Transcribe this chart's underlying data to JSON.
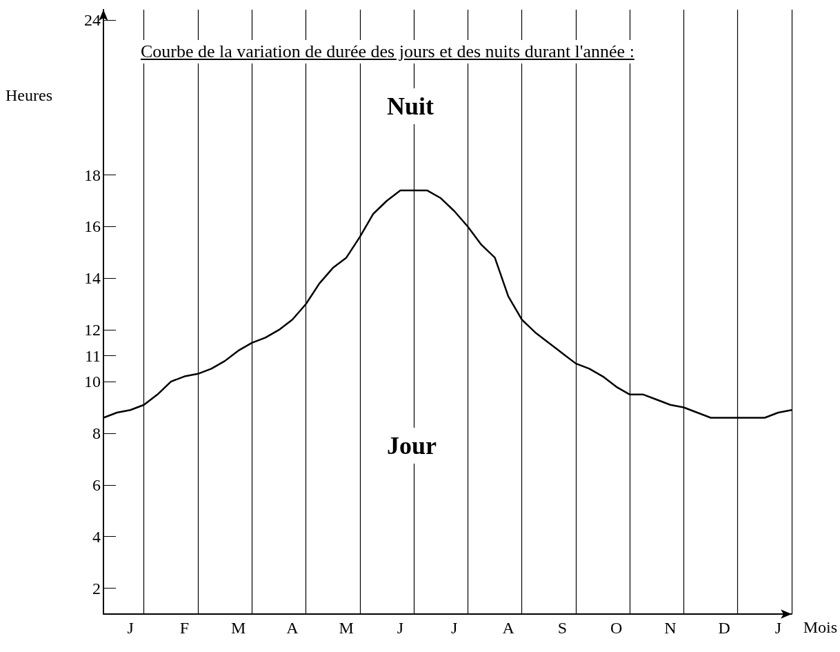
{
  "chart_data": {
    "type": "line",
    "title": "Courbe de la variation de durée des jours et des nuits durant l'année :",
    "ylabel": "Heures",
    "xlabel": "Mois",
    "annotations": [
      "Nuit",
      "Jour"
    ],
    "categories": [
      null,
      null,
      "J",
      null,
      null,
      null,
      "F",
      null,
      null,
      null,
      "M",
      null,
      null,
      null,
      "A",
      null,
      null,
      null,
      "M",
      null,
      null,
      null,
      "J",
      null,
      null,
      null,
      "J",
      null,
      null,
      null,
      "A",
      null,
      null,
      null,
      "S",
      null,
      null,
      null,
      "O",
      null,
      null,
      null,
      "N",
      null,
      null,
      null,
      "D",
      null,
      null,
      null,
      "J",
      null
    ],
    "ylim": [
      1,
      24.4
    ],
    "yticks": [
      2,
      4,
      6,
      8,
      10,
      11,
      12,
      14,
      16,
      18,
      24
    ],
    "series": [
      {
        "color": "#000000",
        "values": [
          8.6,
          8.8,
          8.9,
          9.1,
          9.5,
          10.0,
          10.2,
          10.3,
          10.5,
          10.8,
          11.2,
          11.5,
          11.7,
          12.0,
          12.4,
          13.0,
          13.8,
          14.4,
          14.8,
          15.6,
          16.5,
          17.0,
          17.4,
          17.4,
          17.4,
          17.1,
          16.6,
          16.0,
          15.3,
          14.8,
          13.3,
          12.4,
          11.9,
          11.5,
          11.1,
          10.7,
          10.5,
          10.2,
          9.8,
          9.5,
          9.5,
          9.3,
          9.1,
          9.0,
          8.8,
          8.6,
          8.6,
          8.6,
          8.6,
          8.6,
          8.8,
          8.9
        ]
      }
    ],
    "marker": "none",
    "line_style": "solid",
    "grid": "x"
  }
}
